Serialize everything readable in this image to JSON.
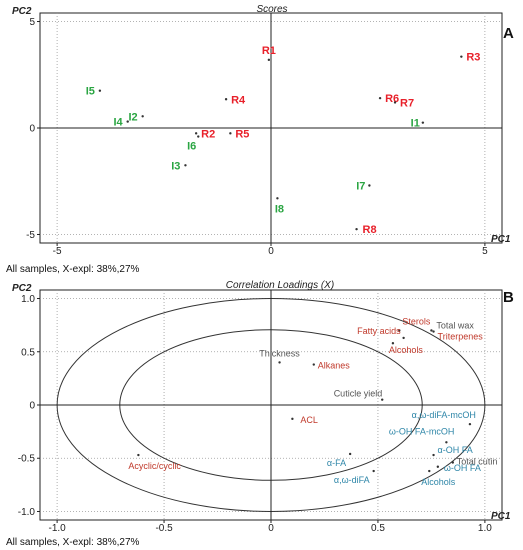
{
  "chart_data": [
    {
      "panel_label": "A",
      "type": "scatter",
      "title": "Scores",
      "xlabel": "PC1",
      "ylabel": "PC2",
      "xlim": [
        -5.4,
        5.4
      ],
      "ylim": [
        -5.4,
        5.4
      ],
      "x_ticks": [
        -5,
        0,
        5
      ],
      "y_ticks": [
        -5,
        0,
        5
      ],
      "footer": "All samples, X-expl: 38%,27%",
      "colors": {
        "R": "#e8202a",
        "I": "#2aa542",
        "point": "#333333"
      },
      "points": [
        {
          "label": "R1",
          "group": "R",
          "x": -0.05,
          "y": 3.2
        },
        {
          "label": "R2",
          "group": "R",
          "x": -1.75,
          "y": -0.25
        },
        {
          "label": "R3",
          "group": "R",
          "x": 4.45,
          "y": 3.35
        },
        {
          "label": "R4",
          "group": "R",
          "x": -1.05,
          "y": 1.35
        },
        {
          "label": "R5",
          "group": "R",
          "x": -0.95,
          "y": -0.25
        },
        {
          "label": "R6",
          "group": "R",
          "x": 2.55,
          "y": 1.4
        },
        {
          "label": "R7",
          "group": "R",
          "x": 2.9,
          "y": 1.2
        },
        {
          "label": "R8",
          "group": "R",
          "x": 2.0,
          "y": -4.75
        },
        {
          "label": "I1",
          "group": "I",
          "x": 3.55,
          "y": 0.25
        },
        {
          "label": "I2",
          "group": "I",
          "x": -3.0,
          "y": 0.55
        },
        {
          "label": "I3",
          "group": "I",
          "x": -2.0,
          "y": -1.75
        },
        {
          "label": "I4",
          "group": "I",
          "x": -3.35,
          "y": 0.3
        },
        {
          "label": "I5",
          "group": "I",
          "x": -4.0,
          "y": 1.75
        },
        {
          "label": "I6",
          "group": "I",
          "x": -1.7,
          "y": -0.4
        },
        {
          "label": "I7",
          "group": "I",
          "x": 2.3,
          "y": -2.7
        },
        {
          "label": "I8",
          "group": "I",
          "x": 0.15,
          "y": -3.3
        }
      ]
    },
    {
      "panel_label": "B",
      "type": "scatter",
      "title": "Correlation Loadings (X)",
      "xlabel": "PC1",
      "ylabel": "PC2",
      "xlim": [
        -1.08,
        1.08
      ],
      "ylim": [
        -1.08,
        1.08
      ],
      "x_ticks": [
        -1.0,
        -0.5,
        0,
        0.5,
        1.0
      ],
      "x_tick_labels": [
        "-1.0",
        "-0.5",
        "0",
        "0.5",
        "1.0"
      ],
      "y_ticks": [
        -1.0,
        -0.5,
        0,
        0.5,
        1.0
      ],
      "y_tick_labels": [
        "-1.0",
        "-0.5",
        "0",
        "0.5",
        "1.0"
      ],
      "circles": [
        1.0,
        0.707
      ],
      "footer": "All samples, X-expl: 38%,27%",
      "colors": {
        "red": "#c0392b",
        "gray": "#555555",
        "blue": "#2e86a8",
        "point": "#333333"
      },
      "points": [
        {
          "label": "Sterols",
          "group": "red",
          "x": 0.6,
          "y": 0.7
        },
        {
          "label": "Fatty acids",
          "group": "red",
          "x": 0.62,
          "y": 0.63
        },
        {
          "label": "Total wax",
          "group": "gray",
          "x": 0.75,
          "y": 0.7
        },
        {
          "label": "Triterpenes",
          "group": "red",
          "x": 0.76,
          "y": 0.69
        },
        {
          "label": "Alcohols",
          "group": "red",
          "x": 0.57,
          "y": 0.58
        },
        {
          "label": "Thickness",
          "group": "gray",
          "x": 0.04,
          "y": 0.4
        },
        {
          "label": "Alkanes",
          "group": "red",
          "x": 0.2,
          "y": 0.38
        },
        {
          "label": "Cuticle yield",
          "group": "gray",
          "x": 0.52,
          "y": 0.05
        },
        {
          "label": "ACL",
          "group": "red",
          "x": 0.1,
          "y": -0.13
        },
        {
          "label": "Acyclic/cyclic",
          "group": "red",
          "x": -0.62,
          "y": -0.47
        },
        {
          "label": "α,ω-diFA-mcOH",
          "group": "blue",
          "x": 0.93,
          "y": -0.18
        },
        {
          "label": "ω-OH FA-mcOH",
          "group": "blue",
          "x": 0.82,
          "y": -0.35
        },
        {
          "label": "α-OH FA",
          "group": "blue",
          "x": 0.76,
          "y": -0.47
        },
        {
          "label": "Total cutin",
          "group": "gray",
          "x": 0.85,
          "y": -0.54
        },
        {
          "label": "ω-OH FA",
          "group": "blue",
          "x": 0.78,
          "y": -0.58
        },
        {
          "label": "Alcohols",
          "group": "blue",
          "x": 0.74,
          "y": -0.62
        },
        {
          "label": "α-FA",
          "group": "blue",
          "x": 0.37,
          "y": -0.46
        },
        {
          "label": "α,ω-diFA",
          "group": "blue",
          "x": 0.48,
          "y": -0.62
        }
      ]
    }
  ]
}
